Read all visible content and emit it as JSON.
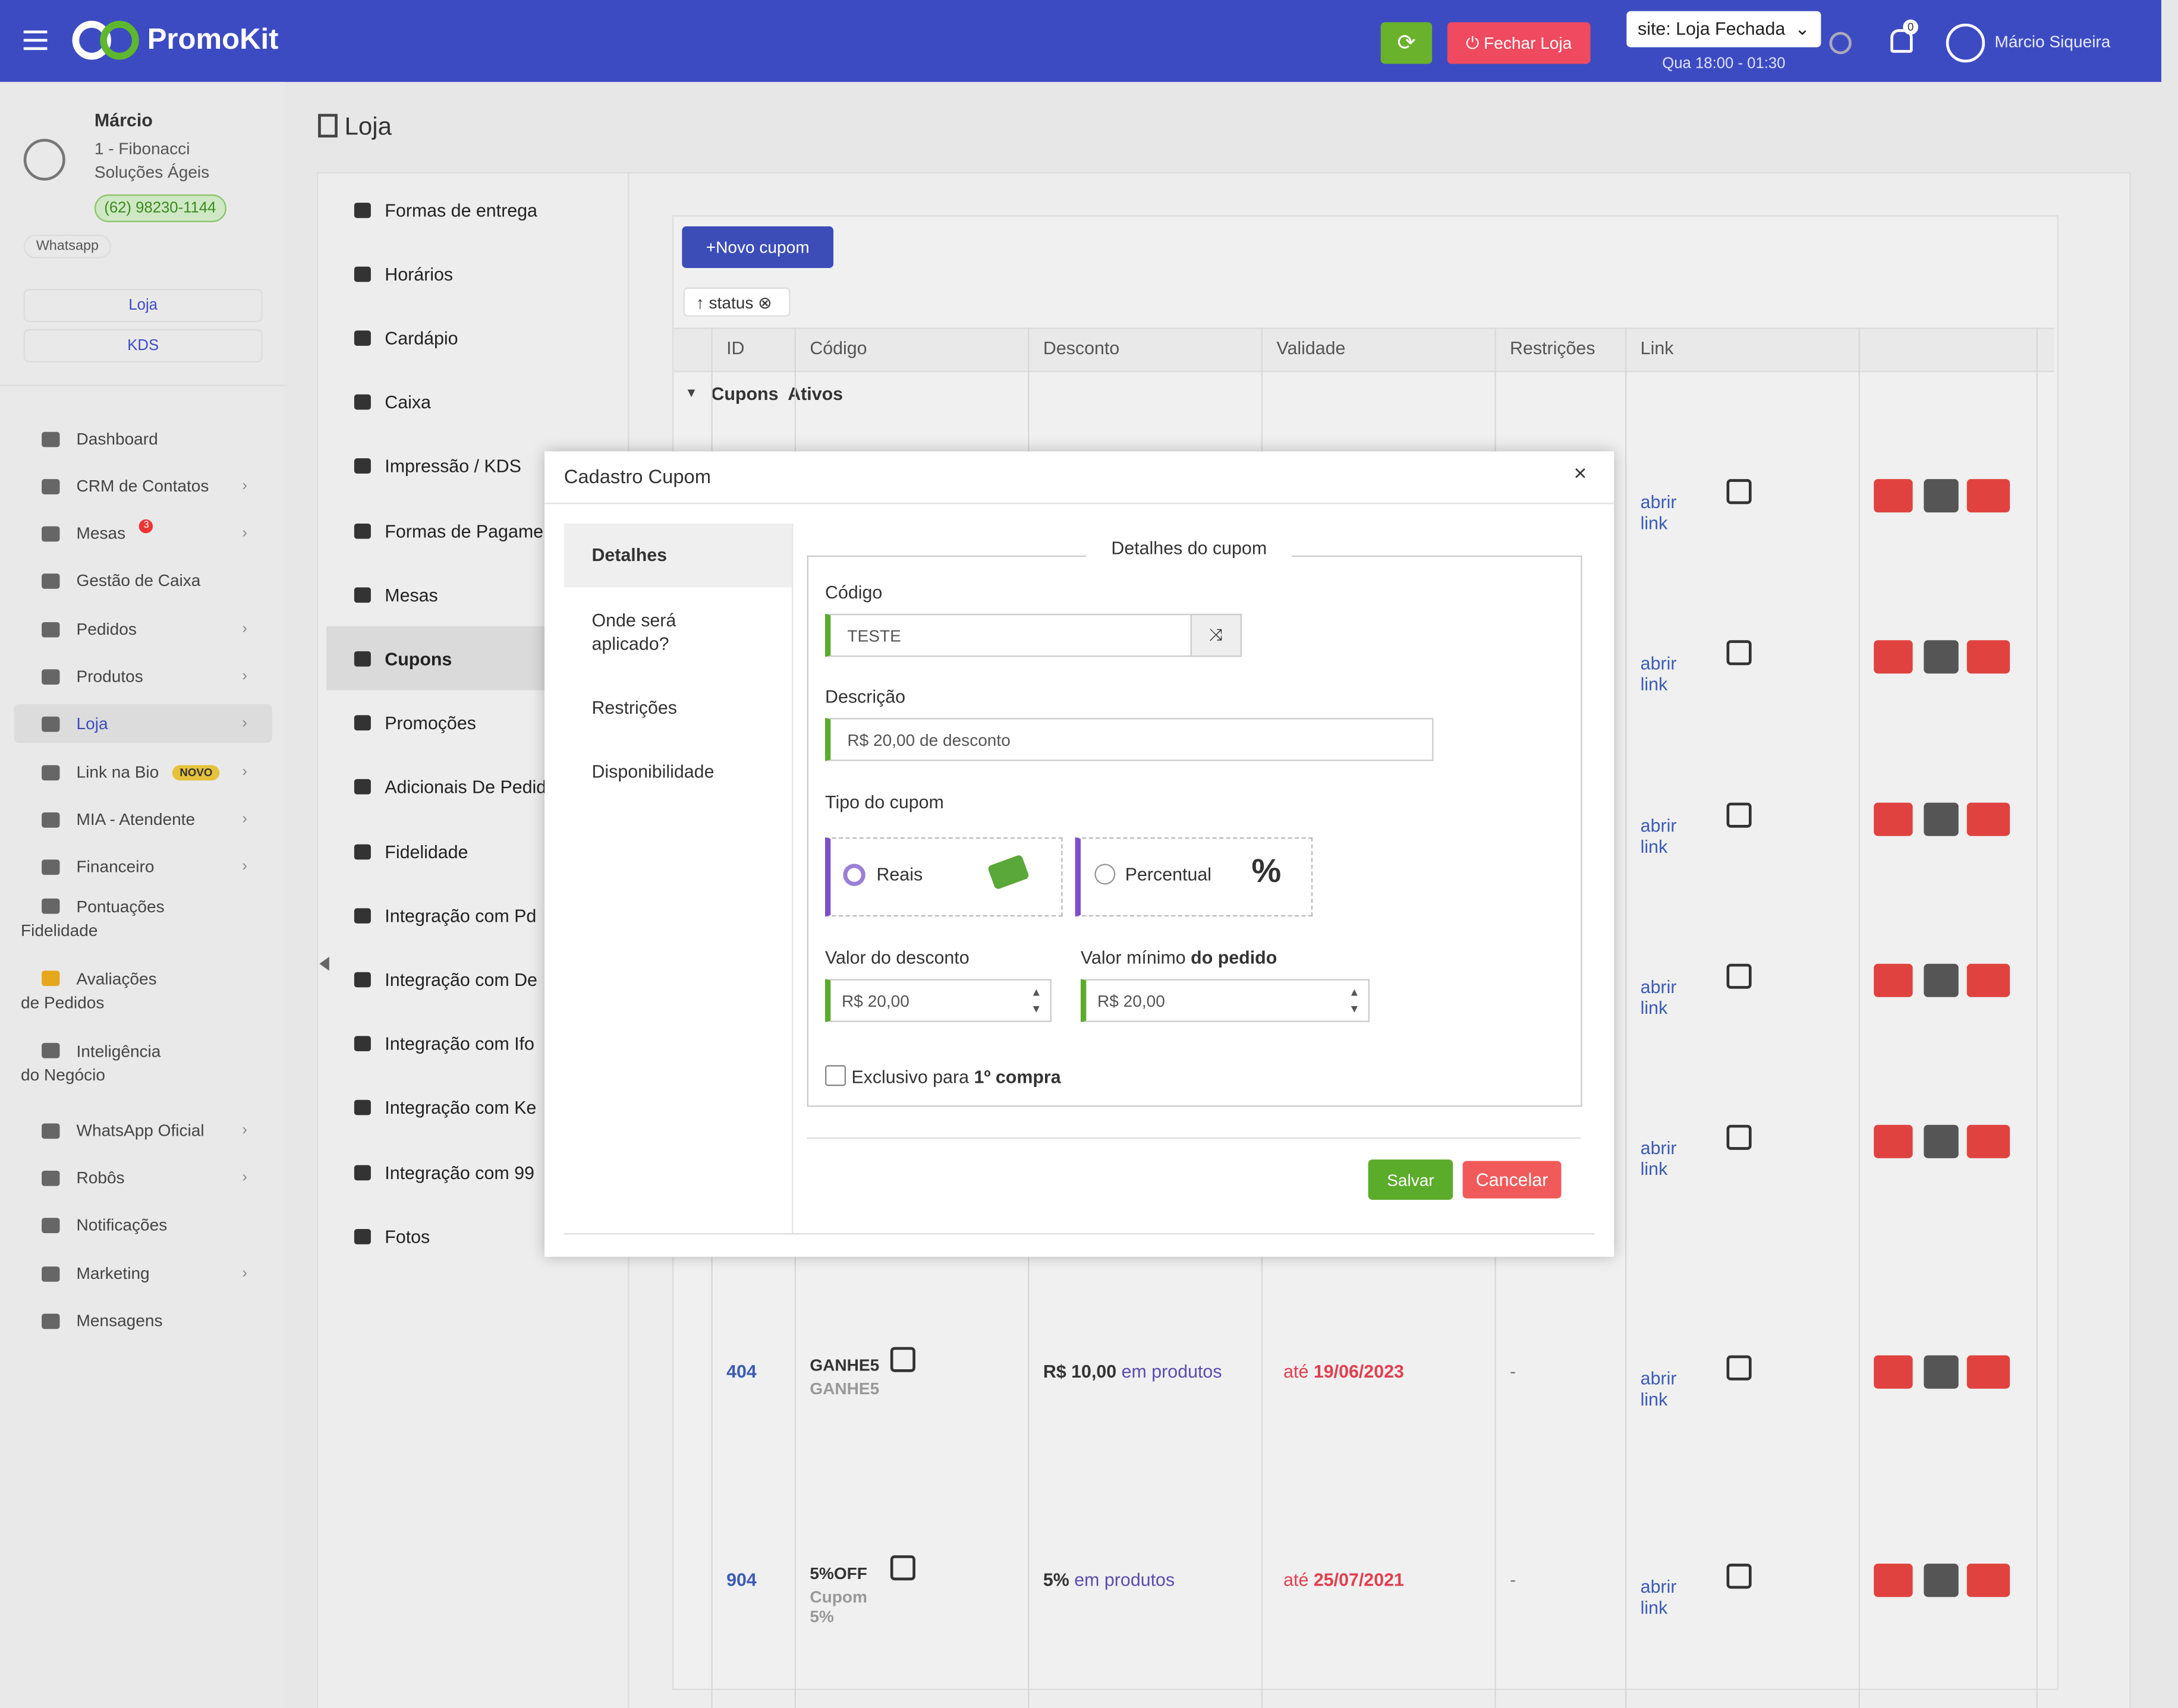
{
  "header": {
    "brand": "PromoKit",
    "close_store": "Fechar Loja",
    "site_select": "site: Loja Fechada",
    "schedule": "Qua 18:00 - 01:30",
    "notifications": "0",
    "user": "Márcio Siqueira"
  },
  "sidebar": {
    "user_name": "Márcio",
    "company": "1 - Fibonacci Soluções Ágeis",
    "phone": "(62) 98230-1144",
    "whatsapp": "Whatsapp",
    "buttons": [
      "Loja",
      "KDS"
    ],
    "nav": [
      {
        "label": "Dashboard"
      },
      {
        "label": "CRM de Contatos"
      },
      {
        "label": "Mesas",
        "badge": "3"
      },
      {
        "label": "Gestão de Caixa"
      },
      {
        "label": "Pedidos"
      },
      {
        "label": "Produtos"
      },
      {
        "label": "Loja"
      },
      {
        "label": "Link na Bio",
        "badge": "NOVO"
      },
      {
        "label": "MIA - Atendente"
      },
      {
        "label": "Financeiro"
      },
      {
        "label": "Pontuações Fidelidade"
      },
      {
        "label": "Avaliações de Pedidos"
      },
      {
        "label": "Inteligência do Negócio"
      },
      {
        "label": "WhatsApp Oficial"
      },
      {
        "label": "Robôs"
      },
      {
        "label": "Notificações"
      },
      {
        "label": "Marketing"
      },
      {
        "label": "Mensagens"
      }
    ]
  },
  "page": {
    "title": "Loja"
  },
  "store_menu": [
    "Formas de entrega",
    "Horários",
    "Cardápio",
    "Caixa",
    "Impressão / KDS",
    "Formas de Pagame",
    "Mesas",
    "Cupons",
    "Promoções",
    "Adicionais De Pedid",
    "Fidelidade",
    "Integração com Pd",
    "Integração com De",
    "Integração com Ifo",
    "Integração com Ke",
    "Integração com 99",
    "Fotos"
  ],
  "table": {
    "new_button": "Novo cupom",
    "filter": "status",
    "columns": [
      "ID",
      "Código",
      "Desconto",
      "Validade",
      "Restrições",
      "Link"
    ],
    "group": "Cupons  Ativos",
    "rows": [
      {
        "link": "abrir link"
      },
      {
        "link": "abrir link"
      },
      {
        "link": "abrir link"
      },
      {
        "link": "abrir link"
      },
      {
        "link": "abrir link"
      },
      {
        "id": 404,
        "code": "GANHE5",
        "name": "GANHE5",
        "discount": "R$ 10,00",
        "discount_suffix": "em produtos",
        "validity_prefix": "até",
        "validity": "19/06/2023",
        "restrictions": "-",
        "link": "abrir link"
      },
      {
        "id": 904,
        "code": "5%OFF",
        "name": "Cupom 5%",
        "discount": "5%",
        "discount_suffix": "em produtos",
        "validity_prefix": "até",
        "validity": "25/07/2021",
        "restrictions": "-",
        "link": "abrir link"
      }
    ]
  },
  "modal": {
    "title": "Cadastro Cupom",
    "tabs": [
      "Detalhes",
      "Onde será aplicado?",
      "Restrições",
      "Disponibilidade"
    ],
    "legend": "Detalhes do cupom",
    "code_label": "Código",
    "code_value": "TESTE",
    "description_label": "Descrição",
    "description_value": "R$ 20,00 de desconto",
    "type_label": "Tipo do cupom",
    "type_options": [
      "Reais",
      "Percentual"
    ],
    "discount_label": "Valor do desconto",
    "discount_value": "R$ 20,00",
    "min_label": "Valor mínimo",
    "min_label_bold": "do pedido",
    "min_value": "R$ 20,00",
    "exclusive_label": "Exclusivo para",
    "exclusive_bold": "1º compra",
    "save": "Salvar",
    "cancel": "Cancelar"
  }
}
